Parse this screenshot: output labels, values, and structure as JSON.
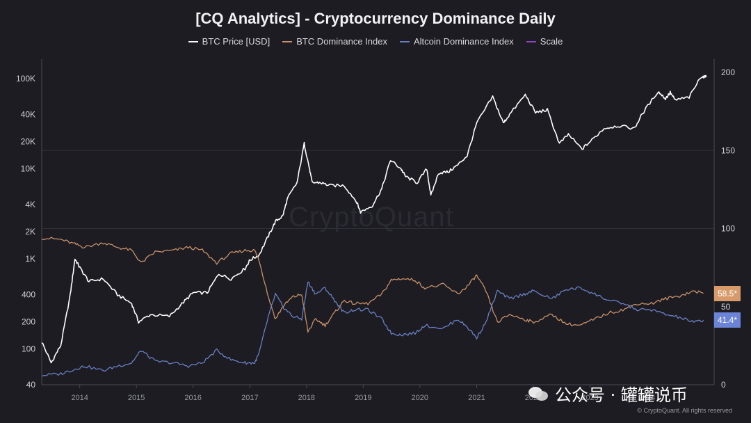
{
  "title": "[CQ Analytics] - Cryptocurrency Dominance Daily",
  "legend": [
    {
      "label": "BTC Price [USD]",
      "color": "#ffffff"
    },
    {
      "label": "BTC Dominance Index",
      "color": "#c8916a"
    },
    {
      "label": "Altcoin Dominance Index",
      "color": "#6b7fc4"
    },
    {
      "label": "Scale",
      "color": "#8a44c8"
    }
  ],
  "watermark": "CryptoQuant",
  "wechat_text": "公众号 · 罐罐说币",
  "copyright": "© CryptoQuant. All rights reserved",
  "badges": {
    "btc_dominance": {
      "text": "58.5*",
      "color": "#d89a6a"
    },
    "altcoin_dominance": {
      "text": "41.4*",
      "color": "#6b84d8"
    }
  },
  "chart_data": {
    "type": "line",
    "title": "[CQ Analytics] - Cryptocurrency Dominance Daily",
    "y_left": {
      "scale": "log",
      "range": [
        40,
        150000
      ],
      "ticks": [
        "100K",
        "40K",
        "20K",
        "10K",
        "4K",
        "2K",
        "1K",
        "400",
        "200",
        "100",
        "40"
      ],
      "tick_values": [
        100000,
        40000,
        20000,
        10000,
        4000,
        2000,
        1000,
        400,
        200,
        100,
        40
      ]
    },
    "y_right": {
      "scale": "linear",
      "range": [
        0,
        200
      ],
      "ticks": [
        "200",
        "150",
        "100",
        "50",
        "0"
      ],
      "tick_values": [
        200,
        150,
        100,
        50,
        0
      ]
    },
    "x": {
      "range": [
        "2013-05-01",
        "2024-08-01"
      ],
      "ticks": [
        "2014",
        "2015",
        "2016",
        "2017",
        "2018",
        "2019",
        "2020",
        "2021",
        "2022",
        "2023",
        "2024"
      ]
    },
    "series": [
      {
        "name": "BTC Price [USD]",
        "axis": "left",
        "color": "#ffffff",
        "points": [
          [
            "2013-05-01",
            120
          ],
          [
            "2013-07-01",
            70
          ],
          [
            "2013-09-01",
            110
          ],
          [
            "2013-11-01",
            400
          ],
          [
            "2013-12-01",
            1000
          ],
          [
            "2014-01-01",
            800
          ],
          [
            "2014-03-01",
            560
          ],
          [
            "2014-06-01",
            600
          ],
          [
            "2014-09-01",
            400
          ],
          [
            "2014-12-01",
            320
          ],
          [
            "2015-01-15",
            200
          ],
          [
            "2015-04-01",
            240
          ],
          [
            "2015-08-01",
            230
          ],
          [
            "2015-11-01",
            330
          ],
          [
            "2016-01-01",
            420
          ],
          [
            "2016-04-01",
            420
          ],
          [
            "2016-06-15",
            680
          ],
          [
            "2016-09-01",
            600
          ],
          [
            "2016-12-01",
            780
          ],
          [
            "2017-01-01",
            970
          ],
          [
            "2017-03-01",
            1100
          ],
          [
            "2017-05-01",
            1800
          ],
          [
            "2017-06-15",
            2600
          ],
          [
            "2017-08-01",
            3000
          ],
          [
            "2017-09-01",
            4700
          ],
          [
            "2017-11-01",
            7000
          ],
          [
            "2017-12-17",
            19000
          ],
          [
            "2018-01-15",
            11000
          ],
          [
            "2018-02-06",
            7000
          ],
          [
            "2018-04-01",
            7000
          ],
          [
            "2018-06-01",
            6500
          ],
          [
            "2018-09-01",
            6500
          ],
          [
            "2018-11-20",
            4300
          ],
          [
            "2018-12-15",
            3300
          ],
          [
            "2019-03-01",
            3900
          ],
          [
            "2019-05-01",
            6000
          ],
          [
            "2019-06-26",
            12500
          ],
          [
            "2019-09-01",
            10000
          ],
          [
            "2019-10-01",
            8200
          ],
          [
            "2019-12-15",
            7000
          ],
          [
            "2020-02-15",
            10000
          ],
          [
            "2020-03-12",
            5000
          ],
          [
            "2020-05-01",
            9000
          ],
          [
            "2020-07-01",
            9200
          ],
          [
            "2020-09-01",
            11000
          ],
          [
            "2020-11-01",
            14000
          ],
          [
            "2021-01-01",
            32000
          ],
          [
            "2021-04-14",
            63000
          ],
          [
            "2021-06-22",
            32000
          ],
          [
            "2021-08-01",
            40000
          ],
          [
            "2021-11-10",
            66000
          ],
          [
            "2022-01-15",
            42000
          ],
          [
            "2022-04-01",
            45000
          ],
          [
            "2022-06-18",
            19000
          ],
          [
            "2022-08-15",
            24000
          ],
          [
            "2022-11-10",
            16500
          ],
          [
            "2023-01-15",
            21000
          ],
          [
            "2023-04-01",
            28000
          ],
          [
            "2023-07-01",
            30000
          ],
          [
            "2023-10-15",
            28000
          ],
          [
            "2023-12-01",
            40000
          ],
          [
            "2024-03-14",
            72000
          ],
          [
            "2024-05-01",
            60000
          ],
          [
            "2024-06-01",
            70000
          ],
          [
            "2024-07-01",
            58000
          ],
          [
            "2024-10-01",
            62000
          ],
          [
            "2024-12-17",
            106000
          ],
          [
            "2025-01-20",
            104000
          ]
        ]
      },
      {
        "name": "BTC Dominance Index",
        "axis": "right",
        "color": "#c8916a",
        "points": [
          [
            "2013-05-01",
            94
          ],
          [
            "2013-09-01",
            93
          ],
          [
            "2013-12-01",
            90
          ],
          [
            "2014-02-01",
            88
          ],
          [
            "2014-06-01",
            91
          ],
          [
            "2014-09-01",
            88
          ],
          [
            "2014-12-01",
            86
          ],
          [
            "2015-02-01",
            78
          ],
          [
            "2015-05-01",
            85
          ],
          [
            "2015-09-01",
            86
          ],
          [
            "2015-12-01",
            88
          ],
          [
            "2016-03-01",
            86
          ],
          [
            "2016-06-01",
            78
          ],
          [
            "2016-09-01",
            84
          ],
          [
            "2016-12-01",
            86
          ],
          [
            "2017-02-01",
            86
          ],
          [
            "2017-03-01",
            80
          ],
          [
            "2017-05-01",
            56
          ],
          [
            "2017-06-15",
            42
          ],
          [
            "2017-08-01",
            50
          ],
          [
            "2017-10-01",
            56
          ],
          [
            "2017-12-01",
            58
          ],
          [
            "2018-01-10",
            34
          ],
          [
            "2018-03-01",
            42
          ],
          [
            "2018-05-01",
            38
          ],
          [
            "2018-07-01",
            46
          ],
          [
            "2018-09-01",
            54
          ],
          [
            "2018-11-01",
            52
          ],
          [
            "2019-02-01",
            52
          ],
          [
            "2019-05-01",
            58
          ],
          [
            "2019-07-01",
            67
          ],
          [
            "2019-09-01",
            68
          ],
          [
            "2019-12-01",
            67
          ],
          [
            "2020-02-01",
            62
          ],
          [
            "2020-06-01",
            64
          ],
          [
            "2020-09-01",
            58
          ],
          [
            "2020-11-01",
            63
          ],
          [
            "2021-01-01",
            70
          ],
          [
            "2021-03-01",
            60
          ],
          [
            "2021-05-15",
            40
          ],
          [
            "2021-08-01",
            45
          ],
          [
            "2021-11-01",
            42
          ],
          [
            "2022-01-01",
            40
          ],
          [
            "2022-05-01",
            45
          ],
          [
            "2022-08-01",
            39
          ],
          [
            "2022-11-01",
            38
          ],
          [
            "2023-02-01",
            42
          ],
          [
            "2023-05-01",
            46
          ],
          [
            "2023-08-01",
            48
          ],
          [
            "2023-11-01",
            52
          ],
          [
            "2024-02-01",
            52
          ],
          [
            "2024-05-01",
            55
          ],
          [
            "2024-08-01",
            57
          ],
          [
            "2024-11-01",
            60
          ],
          [
            "2025-01-01",
            58.5
          ]
        ]
      },
      {
        "name": "Altcoin Dominance Index",
        "axis": "right",
        "color": "#6b7fc4",
        "points": [
          [
            "2013-05-01",
            6
          ],
          [
            "2013-09-01",
            7
          ],
          [
            "2013-12-01",
            10
          ],
          [
            "2014-02-01",
            12
          ],
          [
            "2014-06-01",
            9
          ],
          [
            "2014-09-01",
            12
          ],
          [
            "2014-12-01",
            14
          ],
          [
            "2015-02-01",
            22
          ],
          [
            "2015-05-01",
            15
          ],
          [
            "2015-09-01",
            14
          ],
          [
            "2015-12-01",
            12
          ],
          [
            "2016-03-01",
            14
          ],
          [
            "2016-06-01",
            22
          ],
          [
            "2016-09-01",
            16
          ],
          [
            "2016-12-01",
            14
          ],
          [
            "2017-02-01",
            14
          ],
          [
            "2017-03-01",
            20
          ],
          [
            "2017-05-01",
            44
          ],
          [
            "2017-06-15",
            58
          ],
          [
            "2017-08-01",
            50
          ],
          [
            "2017-10-01",
            44
          ],
          [
            "2017-12-01",
            42
          ],
          [
            "2018-01-10",
            66
          ],
          [
            "2018-03-01",
            58
          ],
          [
            "2018-05-01",
            62
          ],
          [
            "2018-07-01",
            54
          ],
          [
            "2018-09-01",
            46
          ],
          [
            "2018-11-01",
            48
          ],
          [
            "2019-02-01",
            48
          ],
          [
            "2019-05-01",
            42
          ],
          [
            "2019-07-01",
            33
          ],
          [
            "2019-09-01",
            32
          ],
          [
            "2019-12-01",
            33
          ],
          [
            "2020-02-01",
            38
          ],
          [
            "2020-06-01",
            36
          ],
          [
            "2020-09-01",
            42
          ],
          [
            "2020-11-01",
            37
          ],
          [
            "2021-01-01",
            30
          ],
          [
            "2021-03-01",
            40
          ],
          [
            "2021-05-15",
            60
          ],
          [
            "2021-08-01",
            55
          ],
          [
            "2021-11-01",
            58
          ],
          [
            "2022-01-01",
            60
          ],
          [
            "2022-05-01",
            55
          ],
          [
            "2022-08-01",
            61
          ],
          [
            "2022-11-01",
            62
          ],
          [
            "2023-02-01",
            58
          ],
          [
            "2023-05-01",
            54
          ],
          [
            "2023-08-01",
            52
          ],
          [
            "2023-11-01",
            48
          ],
          [
            "2024-02-01",
            48
          ],
          [
            "2024-05-01",
            45
          ],
          [
            "2024-08-01",
            43
          ],
          [
            "2024-11-01",
            40
          ],
          [
            "2025-01-01",
            41.4
          ]
        ]
      }
    ]
  }
}
